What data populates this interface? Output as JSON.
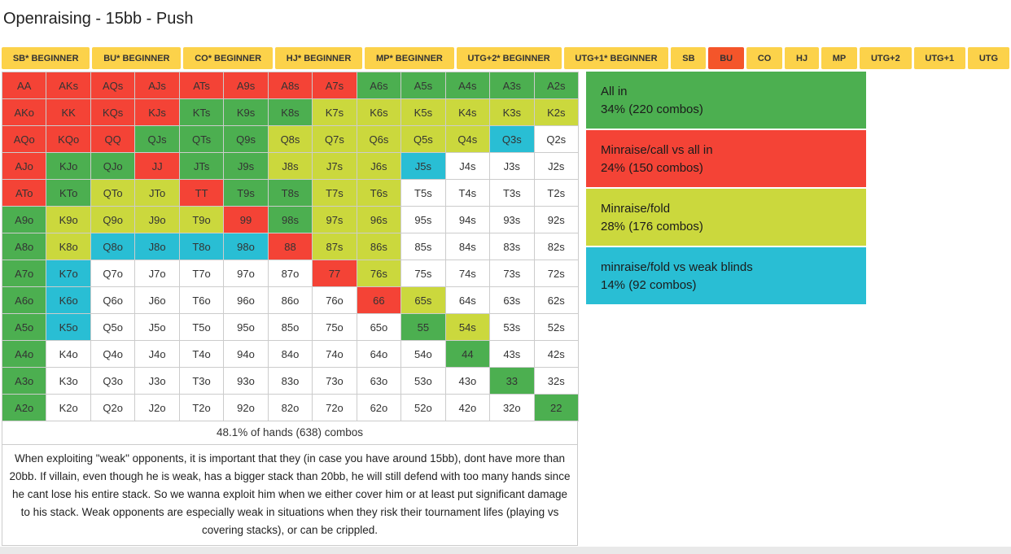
{
  "title": "Openraising - 15bb - Push",
  "tab_bar": {
    "tabs": [
      {
        "label": "SB* BEGINNER",
        "selected": false
      },
      {
        "label": "BU* BEGINNER",
        "selected": false
      },
      {
        "label": "CO* BEGINNER",
        "selected": false
      },
      {
        "label": "HJ* BEGINNER",
        "selected": false
      },
      {
        "label": "MP* BEGINNER",
        "selected": false
      },
      {
        "label": "UTG+2* BEGINNER",
        "selected": false
      },
      {
        "label": "UTG+1* BEGINNER",
        "selected": false
      },
      {
        "label": "SB",
        "selected": false
      },
      {
        "label": "BU",
        "selected": true
      },
      {
        "label": "CO",
        "selected": false
      },
      {
        "label": "HJ",
        "selected": false
      },
      {
        "label": "MP",
        "selected": false
      },
      {
        "label": "UTG+2",
        "selected": false
      },
      {
        "label": "UTG+1",
        "selected": false
      },
      {
        "label": "UTG",
        "selected": false
      }
    ]
  },
  "colors": {
    "all_in": "#4caf50",
    "minraise_call": "#f44336",
    "minraise_fold": "#cbd83d",
    "minraise_fold_weak": "#29bed4",
    "fold": "#ffffff",
    "tab": "#fcd24a",
    "tab_selected": "#f4552a"
  },
  "grid": {
    "action_colors": {
      "G": "all_in",
      "R": "minraise_call",
      "Y": "minraise_fold",
      "C": "minraise_fold_weak",
      "W": "fold"
    },
    "hands": [
      [
        "AA",
        "AKs",
        "AQs",
        "AJs",
        "ATs",
        "A9s",
        "A8s",
        "A7s",
        "A6s",
        "A5s",
        "A4s",
        "A3s",
        "A2s"
      ],
      [
        "AKo",
        "KK",
        "KQs",
        "KJs",
        "KTs",
        "K9s",
        "K8s",
        "K7s",
        "K6s",
        "K5s",
        "K4s",
        "K3s",
        "K2s"
      ],
      [
        "AQo",
        "KQo",
        "QQ",
        "QJs",
        "QTs",
        "Q9s",
        "Q8s",
        "Q7s",
        "Q6s",
        "Q5s",
        "Q4s",
        "Q3s",
        "Q2s"
      ],
      [
        "AJo",
        "KJo",
        "QJo",
        "JJ",
        "JTs",
        "J9s",
        "J8s",
        "J7s",
        "J6s",
        "J5s",
        "J4s",
        "J3s",
        "J2s"
      ],
      [
        "ATo",
        "KTo",
        "QTo",
        "JTo",
        "TT",
        "T9s",
        "T8s",
        "T7s",
        "T6s",
        "T5s",
        "T4s",
        "T3s",
        "T2s"
      ],
      [
        "A9o",
        "K9o",
        "Q9o",
        "J9o",
        "T9o",
        "99",
        "98s",
        "97s",
        "96s",
        "95s",
        "94s",
        "93s",
        "92s"
      ],
      [
        "A8o",
        "K8o",
        "Q8o",
        "J8o",
        "T8o",
        "98o",
        "88",
        "87s",
        "86s",
        "85s",
        "84s",
        "83s",
        "82s"
      ],
      [
        "A7o",
        "K7o",
        "Q7o",
        "J7o",
        "T7o",
        "97o",
        "87o",
        "77",
        "76s",
        "75s",
        "74s",
        "73s",
        "72s"
      ],
      [
        "A6o",
        "K6o",
        "Q6o",
        "J6o",
        "T6o",
        "96o",
        "86o",
        "76o",
        "66",
        "65s",
        "64s",
        "63s",
        "62s"
      ],
      [
        "A5o",
        "K5o",
        "Q5o",
        "J5o",
        "T5o",
        "95o",
        "85o",
        "75o",
        "65o",
        "55",
        "54s",
        "53s",
        "52s"
      ],
      [
        "A4o",
        "K4o",
        "Q4o",
        "J4o",
        "T4o",
        "94o",
        "84o",
        "74o",
        "64o",
        "54o",
        "44",
        "43s",
        "42s"
      ],
      [
        "A3o",
        "K3o",
        "Q3o",
        "J3o",
        "T3o",
        "93o",
        "83o",
        "73o",
        "63o",
        "53o",
        "43o",
        "33",
        "32s"
      ],
      [
        "A2o",
        "K2o",
        "Q2o",
        "J2o",
        "T2o",
        "92o",
        "82o",
        "72o",
        "62o",
        "52o",
        "42o",
        "32o",
        "22"
      ]
    ],
    "cell_actions": [
      "RRRRRRRRGGGGG",
      "RRRRGGGYYYYYY",
      "RRRGGGYYYYYCW",
      "RGGRGGYYYCWWW",
      "RGYYRGGYYWWWW",
      "GYYYYRGYYWWWW",
      "GYCCCCRYYWWWW",
      "GCWWWWWRYWWWW",
      "GCWWWWWWRYWWW",
      "GCWWWWWWWGYWW",
      "GWWWWWWWWWGWW",
      "GWWWWWWWWWWGW",
      "GWWWWWWWWWWWG"
    ]
  },
  "legend": [
    {
      "label": "All in",
      "detail": "34% (220 combos)",
      "action": "G"
    },
    {
      "label": "Minraise/call vs all in",
      "detail": "24% (150 combos)",
      "action": "R"
    },
    {
      "label": "Minraise/fold",
      "detail": "28% (176 combos)",
      "action": "Y"
    },
    {
      "label": "minraise/fold vs weak blinds",
      "detail": "14% (92 combos)",
      "action": "C"
    }
  ],
  "summary": "48.1% of hands (638) combos",
  "note": "When exploiting \"weak\" opponents, it is important that they (in case you have around 15bb), dont have more than 20bb. If villain, even though he is weak, has a bigger stack than 20bb, he will still defend with too many hands since he cant lose his entire stack. So we wanna exploit him when we either cover him or at least put significant damage to his stack. Weak opponents are especially weak in situations when they risk their tournament lifes (playing vs covering stacks), or can be crippled."
}
